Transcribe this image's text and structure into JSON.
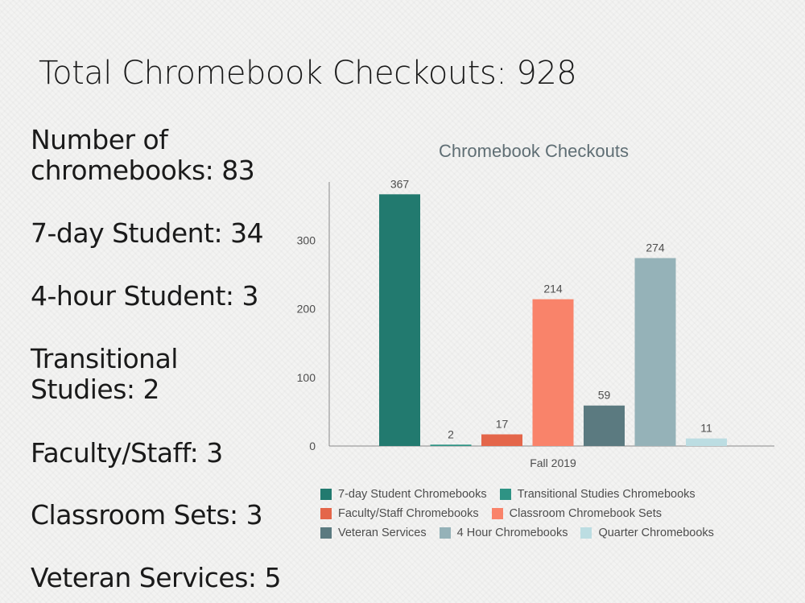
{
  "slide": {
    "title": "Total Chromebook Checkouts: 928",
    "stats": [
      {
        "label": "Number of chromebooks: ",
        "value": "83"
      },
      {
        "label": "7-day Student: ",
        "value": "34"
      },
      {
        "label": "4-hour Student: ",
        "value": "3"
      },
      {
        "label": "Transitional Studies: ",
        "value": "2"
      },
      {
        "label": "Faculty/Staff: ",
        "value": "3"
      },
      {
        "label": "Classroom Sets: ",
        "value": "3"
      },
      {
        "label": "Veteran Services: ",
        "value": "5"
      }
    ]
  },
  "chart_data": {
    "type": "bar",
    "title": "Chromebook Checkouts",
    "categories": [
      "Fall 2019"
    ],
    "series": [
      {
        "name": "7-day Student Chromebooks",
        "values": [
          367
        ],
        "color": "#227a6f"
      },
      {
        "name": "Transitional Studies Chromebooks",
        "values": [
          2
        ],
        "color": "#2e9384"
      },
      {
        "name": "Faculty/Staff Chromebooks",
        "values": [
          17
        ],
        "color": "#e4664a"
      },
      {
        "name": "Classroom Chromebook Sets",
        "values": [
          214
        ],
        "color": "#f9836a"
      },
      {
        "name": "Veteran Services",
        "values": [
          59
        ],
        "color": "#5b7a80"
      },
      {
        "name": "4 Hour Chromebooks",
        "values": [
          274
        ],
        "color": "#95b2b8"
      },
      {
        "name": "Quarter Chromebooks",
        "values": [
          11
        ],
        "color": "#bcdde2"
      }
    ],
    "ylim": [
      0,
      385
    ],
    "yticks": [
      0,
      100,
      200,
      300
    ],
    "grid": false,
    "legend_position": "bottom"
  }
}
